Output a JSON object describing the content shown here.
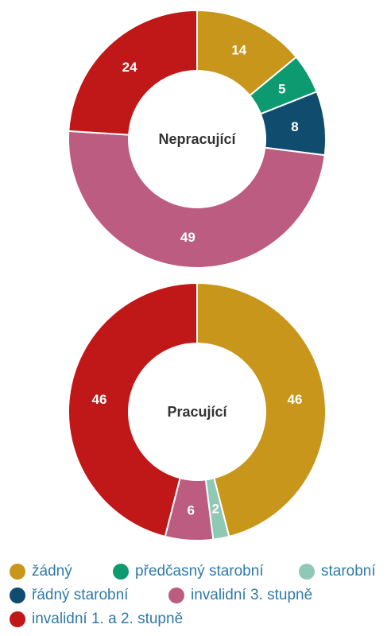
{
  "colors": {
    "zadny": "#C8961A",
    "predcasny": "#0E9A70",
    "starobni": "#8FC8B5",
    "radny": "#0F4C6E",
    "inv3": "#BC5C80",
    "inv12": "#C01818"
  },
  "legend": [
    {
      "key": "zadny",
      "label": "žádný"
    },
    {
      "key": "predcasny",
      "label": "předčasný starobní"
    },
    {
      "key": "starobni",
      "label": "starobní"
    },
    {
      "key": "radny",
      "label": "řádný starobní"
    },
    {
      "key": "inv3",
      "label": "invalidní 3. stupně"
    },
    {
      "key": "inv12",
      "label": "invalidní 1. a 2. stupně"
    }
  ],
  "chart_data": [
    {
      "type": "pie",
      "title": "Nepracující",
      "categories": [
        "žádný",
        "předčasný starobní",
        "řádný starobní",
        "invalidní 3. stupně",
        "invalidní 1. a 2. stupně"
      ],
      "keys": [
        "zadny",
        "predcasny",
        "radny",
        "inv3",
        "inv12"
      ],
      "values": [
        14,
        5,
        8,
        49,
        24
      ]
    },
    {
      "type": "pie",
      "title": "Pracující",
      "categories": [
        "žádný",
        "starobní",
        "invalidní 3. stupně",
        "invalidní 1. a 2. stupně"
      ],
      "keys": [
        "zadny",
        "starobni",
        "inv3",
        "inv12"
      ],
      "values": [
        46,
        2,
        6,
        46
      ]
    }
  ]
}
